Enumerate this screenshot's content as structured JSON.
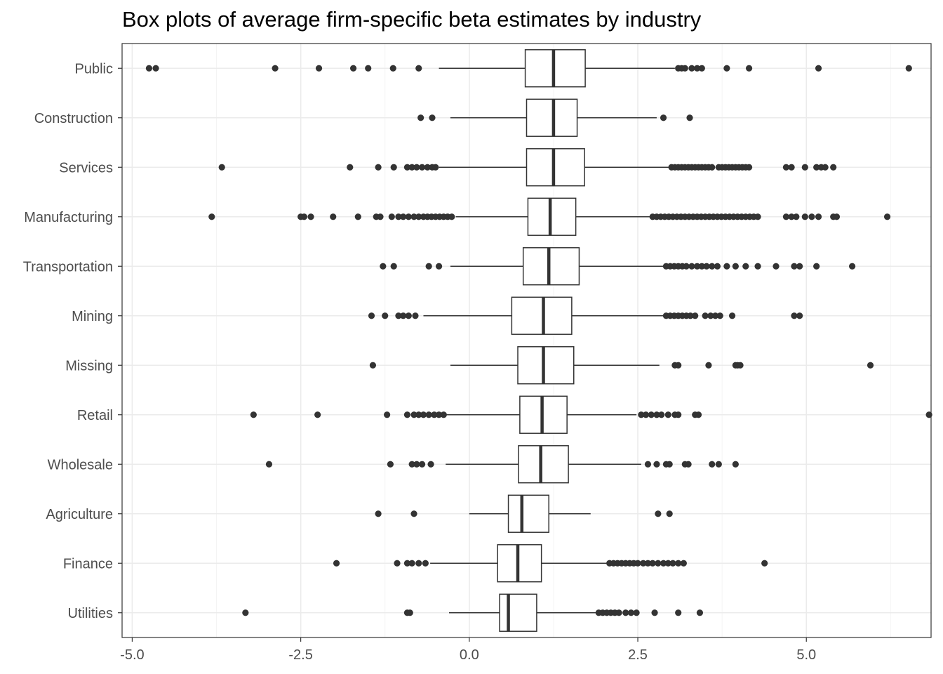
{
  "chart_data": {
    "type": "boxplot",
    "orientation": "horizontal",
    "title": "Box plots of average firm-specific beta estimates by industry",
    "xlabel": "",
    "ylabel": "",
    "xlim": [
      -5.15,
      6.85
    ],
    "x_ticks": [
      -5.0,
      -2.5,
      0.0,
      2.5,
      5.0
    ],
    "x_tick_labels": [
      "-5.0",
      "-2.5",
      "0.0",
      "2.5",
      "5.0"
    ],
    "grid": true,
    "legend": "none",
    "colors": {
      "box": "#333333",
      "outlier": "#333333",
      "grid": "#ebebeb",
      "panel_border": "#333333"
    },
    "categories": [
      "Public",
      "Construction",
      "Services",
      "Manufacturing",
      "Transportation",
      "Mining",
      "Missing",
      "Retail",
      "Wholesale",
      "Agriculture",
      "Finance",
      "Utilities"
    ],
    "boxes": [
      {
        "category": "Public",
        "whisker_low": -0.45,
        "q1": 0.83,
        "median": 1.25,
        "q3": 1.72,
        "whisker_high": 3.05,
        "outliers": [
          -4.75,
          -4.65,
          -2.88,
          -2.23,
          -1.72,
          -1.5,
          -1.13,
          -0.75,
          3.1,
          3.15,
          3.2,
          3.3,
          3.38,
          3.45,
          3.82,
          4.15,
          5.18,
          6.52
        ]
      },
      {
        "category": "Construction",
        "whisker_low": -0.28,
        "q1": 0.85,
        "median": 1.25,
        "q3": 1.6,
        "whisker_high": 2.78,
        "outliers": [
          -0.72,
          -0.55,
          2.88,
          3.27
        ]
      },
      {
        "category": "Services",
        "whisker_low": -0.45,
        "q1": 0.85,
        "median": 1.25,
        "q3": 1.71,
        "whisker_high": 2.98,
        "outliers": [
          -3.67,
          -1.77,
          -1.35,
          -1.12,
          -0.92,
          -0.85,
          -0.78,
          -0.7,
          -0.62,
          -0.55,
          -0.5,
          3.0,
          3.05,
          3.1,
          3.15,
          3.2,
          3.25,
          3.3,
          3.35,
          3.4,
          3.45,
          3.5,
          3.55,
          3.6,
          3.7,
          3.75,
          3.8,
          3.85,
          3.9,
          3.95,
          4.0,
          4.05,
          4.1,
          4.15,
          4.7,
          4.78,
          4.98,
          5.15,
          5.22,
          5.28,
          5.4
        ]
      },
      {
        "category": "Manufacturing",
        "whisker_low": -0.2,
        "q1": 0.87,
        "median": 1.2,
        "q3": 1.58,
        "whisker_high": 2.68,
        "outliers": [
          -3.82,
          -2.5,
          -2.45,
          -2.35,
          -2.02,
          -1.65,
          -1.38,
          -1.32,
          -1.15,
          -1.05,
          -0.98,
          -0.9,
          -0.82,
          -0.75,
          -0.68,
          -0.62,
          -0.56,
          -0.5,
          -0.44,
          -0.38,
          -0.32,
          -0.26,
          2.72,
          2.78,
          2.84,
          2.9,
          2.96,
          3.02,
          3.08,
          3.14,
          3.2,
          3.26,
          3.32,
          3.38,
          3.44,
          3.5,
          3.56,
          3.62,
          3.68,
          3.74,
          3.8,
          3.86,
          3.92,
          3.98,
          4.04,
          4.1,
          4.16,
          4.22,
          4.28,
          4.7,
          4.78,
          4.85,
          4.98,
          5.08,
          5.18,
          5.4,
          5.45,
          6.2
        ]
      },
      {
        "category": "Transportation",
        "whisker_low": -0.28,
        "q1": 0.8,
        "median": 1.18,
        "q3": 1.63,
        "whisker_high": 2.88,
        "outliers": [
          -1.28,
          -1.12,
          -0.6,
          -0.45,
          2.92,
          2.98,
          3.04,
          3.1,
          3.16,
          3.22,
          3.3,
          3.38,
          3.45,
          3.52,
          3.6,
          3.68,
          3.82,
          3.95,
          4.1,
          4.28,
          4.55,
          4.82,
          4.9,
          5.15,
          5.68
        ]
      },
      {
        "category": "Mining",
        "whisker_low": -0.68,
        "q1": 0.63,
        "median": 1.1,
        "q3": 1.52,
        "whisker_high": 2.88,
        "outliers": [
          -1.45,
          -1.25,
          -1.05,
          -0.98,
          -0.9,
          -0.8,
          2.92,
          2.98,
          3.04,
          3.1,
          3.16,
          3.22,
          3.28,
          3.35,
          3.5,
          3.58,
          3.65,
          3.72,
          3.9,
          4.82,
          4.9
        ]
      },
      {
        "category": "Missing",
        "whisker_low": -0.28,
        "q1": 0.72,
        "median": 1.1,
        "q3": 1.55,
        "whisker_high": 2.82,
        "outliers": [
          -1.43,
          3.05,
          3.1,
          3.55,
          3.95,
          3.98,
          4.02,
          5.95
        ]
      },
      {
        "category": "Retail",
        "whisker_low": -0.35,
        "q1": 0.75,
        "median": 1.08,
        "q3": 1.45,
        "whisker_high": 2.48,
        "outliers": [
          -3.2,
          -2.25,
          -1.22,
          -0.92,
          -0.82,
          -0.75,
          -0.68,
          -0.6,
          -0.52,
          -0.45,
          -0.38,
          2.55,
          2.62,
          2.7,
          2.78,
          2.85,
          2.95,
          3.05,
          3.1,
          3.35,
          3.4,
          6.82
        ]
      },
      {
        "category": "Wholesale",
        "whisker_low": -0.35,
        "q1": 0.73,
        "median": 1.06,
        "q3": 1.47,
        "whisker_high": 2.55,
        "outliers": [
          -2.97,
          -1.17,
          -0.85,
          -0.78,
          -0.7,
          -0.57,
          2.65,
          2.78,
          2.92,
          2.97,
          3.2,
          3.25,
          3.6,
          3.7,
          3.95
        ]
      },
      {
        "category": "Agriculture",
        "whisker_low": 0.0,
        "q1": 0.58,
        "median": 0.78,
        "q3": 1.18,
        "whisker_high": 1.8,
        "outliers": [
          -1.35,
          -0.82,
          2.8,
          2.97
        ]
      },
      {
        "category": "Finance",
        "whisker_low": -0.58,
        "q1": 0.42,
        "median": 0.72,
        "q3": 1.07,
        "whisker_high": 2.05,
        "outliers": [
          -1.97,
          -1.07,
          -0.92,
          -0.85,
          -0.75,
          -0.65,
          2.08,
          2.14,
          2.2,
          2.26,
          2.32,
          2.38,
          2.44,
          2.5,
          2.58,
          2.65,
          2.72,
          2.8,
          2.88,
          2.95,
          3.02,
          3.1,
          3.18,
          4.38
        ]
      },
      {
        "category": "Utilities",
        "whisker_low": -0.3,
        "q1": 0.45,
        "median": 0.58,
        "q3": 1.0,
        "whisker_high": 1.88,
        "outliers": [
          -3.32,
          -0.92,
          -0.88,
          1.92,
          1.98,
          2.04,
          2.1,
          2.16,
          2.22,
          2.32,
          2.4,
          2.48,
          2.75,
          3.1,
          3.42
        ]
      }
    ]
  }
}
